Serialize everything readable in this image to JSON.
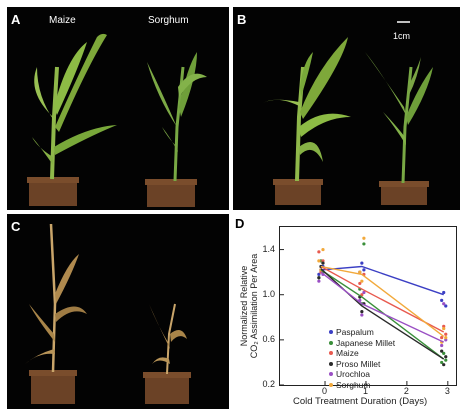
{
  "panel_a": {
    "letter": "A",
    "left_label": "Maize",
    "right_label": "Sorghum"
  },
  "panel_b": {
    "letter": "B",
    "scale_label": "1cm"
  },
  "panel_c": {
    "letter": "C"
  },
  "panel_d": {
    "letter": "D"
  },
  "chart_data": {
    "type": "line",
    "xlabel": "Cold Treatment Duration (Days)",
    "ylabel_line1": "Normalized Relative",
    "ylabel_line2": "CO₂ Assimilation Per Area",
    "xlim": [
      -1.1,
      3.2
    ],
    "ylim": [
      0.2,
      1.6
    ],
    "x_ticks": [
      0,
      1,
      2,
      3
    ],
    "x_tick_labels": [
      "0",
      "1",
      "2",
      "3"
    ],
    "y_ticks": [
      0.2,
      0.6,
      1.0,
      1.4
    ],
    "y_tick_labels": [
      "0.2",
      "0.6",
      "1.0",
      "1.4"
    ],
    "legend_position": "lower-left",
    "x": [
      -0.1,
      0.9,
      2.9
    ],
    "series": [
      {
        "name": "Paspalum",
        "color": "#3b3fc4",
        "values": [
          1.22,
          1.25,
          1.0
        ],
        "points": [
          [
            -0.15,
            1.18
          ],
          [
            -0.1,
            1.22
          ],
          [
            -0.05,
            1.25
          ],
          [
            0.85,
            1.2
          ],
          [
            0.9,
            1.28
          ],
          [
            0.95,
            1.22
          ],
          [
            2.85,
            0.95
          ],
          [
            2.9,
            1.02
          ],
          [
            2.95,
            0.9
          ]
        ]
      },
      {
        "name": "Japanese Millet",
        "color": "#3a8f3a",
        "values": [
          1.22,
          0.98,
          0.43
        ],
        "points": [
          [
            -0.15,
            1.15
          ],
          [
            -0.1,
            1.3
          ],
          [
            -0.05,
            1.2
          ],
          [
            0.85,
            1.05
          ],
          [
            0.9,
            0.92
          ],
          [
            0.95,
            1.45
          ],
          [
            2.85,
            0.4
          ],
          [
            2.9,
            0.48
          ],
          [
            2.95,
            0.42
          ]
        ]
      },
      {
        "name": "Maize",
        "color": "#e85a4f",
        "values": [
          1.25,
          1.05,
          0.67
        ],
        "points": [
          [
            -0.15,
            1.38
          ],
          [
            -0.1,
            1.2
          ],
          [
            -0.05,
            1.3
          ],
          [
            0.85,
            1.1
          ],
          [
            0.9,
            1.0
          ],
          [
            0.95,
            1.18
          ],
          [
            2.85,
            0.62
          ],
          [
            2.9,
            0.72
          ],
          [
            2.95,
            0.65
          ]
        ]
      },
      {
        "name": "Proso Millet",
        "color": "#2a2a2a",
        "values": [
          1.23,
          0.9,
          0.43
        ],
        "points": [
          [
            -0.15,
            1.15
          ],
          [
            -0.1,
            1.25
          ],
          [
            -0.05,
            1.28
          ],
          [
            0.85,
            0.98
          ],
          [
            0.9,
            0.85
          ],
          [
            0.95,
            0.92
          ],
          [
            2.85,
            0.5
          ],
          [
            2.9,
            0.38
          ],
          [
            2.95,
            0.45
          ]
        ]
      },
      {
        "name": "Urochloa",
        "color": "#9a4fc4",
        "values": [
          1.2,
          0.92,
          0.58
        ],
        "points": [
          [
            -0.15,
            1.12
          ],
          [
            -0.1,
            1.22
          ],
          [
            -0.05,
            1.18
          ],
          [
            0.85,
            0.95
          ],
          [
            0.9,
            0.82
          ],
          [
            0.95,
            1.02
          ],
          [
            2.85,
            0.55
          ],
          [
            2.9,
            0.92
          ],
          [
            2.95,
            0.6
          ]
        ]
      },
      {
        "name": "Sorghum",
        "color": "#f2a93b",
        "values": [
          1.25,
          1.18,
          0.63
        ],
        "points": [
          [
            -0.15,
            1.3
          ],
          [
            -0.1,
            1.22
          ],
          [
            -0.05,
            1.4
          ],
          [
            0.85,
            1.2
          ],
          [
            0.9,
            1.12
          ],
          [
            0.95,
            1.5
          ],
          [
            2.85,
            0.58
          ],
          [
            2.9,
            0.7
          ],
          [
            2.95,
            0.62
          ]
        ]
      }
    ]
  }
}
